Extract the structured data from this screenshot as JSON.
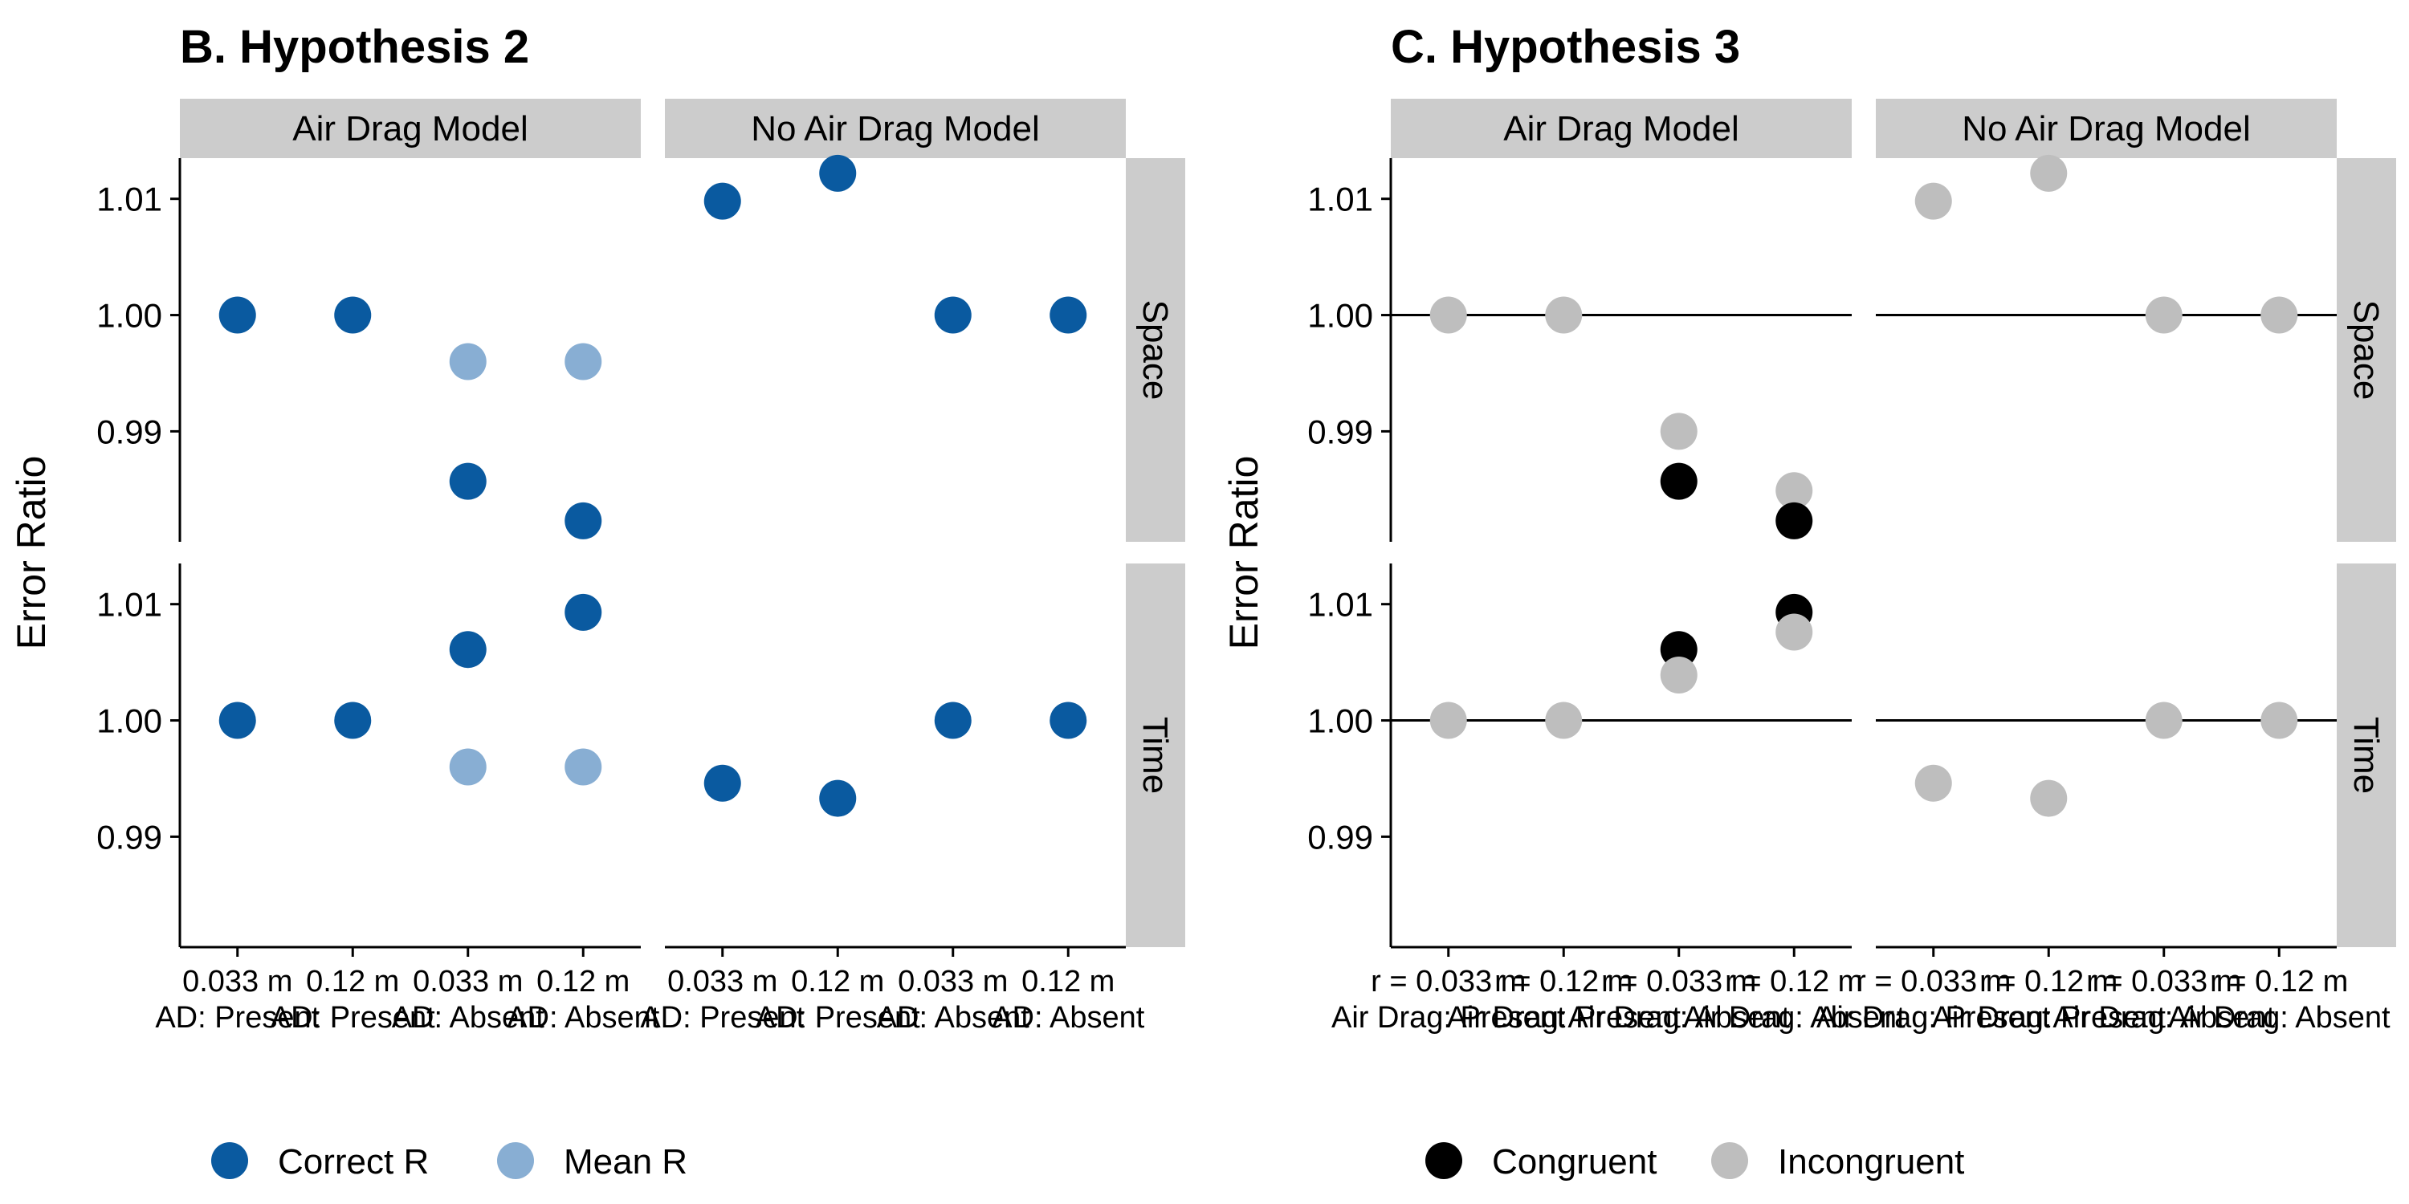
{
  "colors": {
    "correct": "#0A5AA0",
    "mean": "#88AED3",
    "congruent": "#000000",
    "incongruent": "#BEBEBE",
    "strip": "#CCCCCC",
    "axis": "#000000",
    "background": "#FFFFFF"
  },
  "chart_data": [
    {
      "type": "scatter",
      "title": "B. Hypothesis 2",
      "ylabel": "Error Ratio",
      "columns": [
        "Air Drag Model",
        "No Air Drag Model"
      ],
      "rows": [
        "Space",
        "Time"
      ],
      "ylim": {
        "Space": [
          0.9805,
          1.0135
        ],
        "Time": [
          0.9805,
          1.0135
        ]
      },
      "yticks": {
        "Space": [
          {
            "v": 0.99,
            "label": "0.99"
          },
          {
            "v": 1.0,
            "label": "1.00"
          },
          {
            "v": 1.01,
            "label": "1.01"
          }
        ],
        "Time": [
          {
            "v": 0.99,
            "label": "0.99"
          },
          {
            "v": 1.0,
            "label": "1.00"
          },
          {
            "v": 1.01,
            "label": "1.01"
          }
        ]
      },
      "reference_lines": false,
      "xtick_labels": [
        [
          "0.033 m",
          "0.12 m",
          "0.033 m",
          "0.12 m"
        ],
        [
          "AD: Present",
          "AD: Present",
          "AD: Absent",
          "AD: Absent"
        ]
      ],
      "legend": {
        "position": "bottom",
        "entries": [
          {
            "label": "Correct R",
            "color_key": "correct"
          },
          {
            "label": "Mean R",
            "color_key": "mean"
          }
        ]
      },
      "points": [
        {
          "column": 0,
          "row": "Space",
          "x": 0,
          "y": 1.0,
          "series": "Correct R"
        },
        {
          "column": 0,
          "row": "Space",
          "x": 1,
          "y": 1.0,
          "series": "Correct R"
        },
        {
          "column": 0,
          "row": "Space",
          "x": 2,
          "y": 0.996,
          "series": "Mean R"
        },
        {
          "column": 0,
          "row": "Space",
          "x": 2,
          "y": 0.9857,
          "series": "Correct R"
        },
        {
          "column": 0,
          "row": "Space",
          "x": 3,
          "y": 0.996,
          "series": "Mean R"
        },
        {
          "column": 0,
          "row": "Space",
          "x": 3,
          "y": 0.9823,
          "series": "Correct R"
        },
        {
          "column": 1,
          "row": "Space",
          "x": 0,
          "y": 1.0098,
          "series": "Correct R"
        },
        {
          "column": 1,
          "row": "Space",
          "x": 1,
          "y": 1.0122,
          "series": "Correct R"
        },
        {
          "column": 1,
          "row": "Space",
          "x": 2,
          "y": 1.0,
          "series": "Correct R"
        },
        {
          "column": 1,
          "row": "Space",
          "x": 3,
          "y": 1.0,
          "series": "Correct R"
        },
        {
          "column": 0,
          "row": "Time",
          "x": 0,
          "y": 1.0,
          "series": "Correct R"
        },
        {
          "column": 0,
          "row": "Time",
          "x": 1,
          "y": 1.0,
          "series": "Correct R"
        },
        {
          "column": 0,
          "row": "Time",
          "x": 2,
          "y": 1.0061,
          "series": "Correct R"
        },
        {
          "column": 0,
          "row": "Time",
          "x": 2,
          "y": 0.996,
          "series": "Mean R"
        },
        {
          "column": 0,
          "row": "Time",
          "x": 3,
          "y": 1.0093,
          "series": "Correct R"
        },
        {
          "column": 0,
          "row": "Time",
          "x": 3,
          "y": 0.996,
          "series": "Mean R"
        },
        {
          "column": 1,
          "row": "Time",
          "x": 0,
          "y": 0.9946,
          "series": "Correct R"
        },
        {
          "column": 1,
          "row": "Time",
          "x": 1,
          "y": 0.9933,
          "series": "Correct R"
        },
        {
          "column": 1,
          "row": "Time",
          "x": 2,
          "y": 1.0,
          "series": "Correct R"
        },
        {
          "column": 1,
          "row": "Time",
          "x": 3,
          "y": 1.0,
          "series": "Correct R"
        }
      ]
    },
    {
      "type": "scatter",
      "title": "C. Hypothesis 3",
      "ylabel": "Error Ratio",
      "columns": [
        "Air Drag Model",
        "No Air Drag Model"
      ],
      "rows": [
        "Space",
        "Time"
      ],
      "ylim": {
        "Space": [
          0.9805,
          1.0135
        ],
        "Time": [
          0.9805,
          1.0135
        ]
      },
      "yticks": {
        "Space": [
          {
            "v": 0.99,
            "label": "0.99"
          },
          {
            "v": 1.0,
            "label": "1.00"
          },
          {
            "v": 1.01,
            "label": "1.01"
          }
        ],
        "Time": [
          {
            "v": 0.99,
            "label": "0.99"
          },
          {
            "v": 1.0,
            "label": "1.00"
          },
          {
            "v": 1.01,
            "label": "1.01"
          }
        ]
      },
      "reference_lines": true,
      "xtick_labels": [
        [
          "r = 0.033 m",
          "r = 0.12 m",
          "r = 0.033 m",
          "r = 0.12 m"
        ],
        [
          "Air Drag: Present",
          "Air Drag: Present",
          "Air Drag: Absent",
          "Air Drag: Absent"
        ]
      ],
      "legend": {
        "position": "bottom",
        "entries": [
          {
            "label": "Congruent",
            "color_key": "congruent"
          },
          {
            "label": "Incongruent",
            "color_key": "incongruent"
          }
        ]
      },
      "points": [
        {
          "column": 0,
          "row": "Space",
          "x": 0,
          "y": 1.0,
          "series": "Incongruent"
        },
        {
          "column": 0,
          "row": "Space",
          "x": 1,
          "y": 1.0,
          "series": "Incongruent"
        },
        {
          "column": 0,
          "row": "Space",
          "x": 2,
          "y": 0.99,
          "series": "Incongruent"
        },
        {
          "column": 0,
          "row": "Space",
          "x": 2,
          "y": 0.9857,
          "series": "Congruent"
        },
        {
          "column": 0,
          "row": "Space",
          "x": 3,
          "y": 0.9849,
          "series": "Incongruent"
        },
        {
          "column": 0,
          "row": "Space",
          "x": 3,
          "y": 0.9823,
          "series": "Congruent"
        },
        {
          "column": 1,
          "row": "Space",
          "x": 0,
          "y": 1.0098,
          "series": "Incongruent"
        },
        {
          "column": 1,
          "row": "Space",
          "x": 1,
          "y": 1.0122,
          "series": "Incongruent"
        },
        {
          "column": 1,
          "row": "Space",
          "x": 2,
          "y": 1.0,
          "series": "Incongruent"
        },
        {
          "column": 1,
          "row": "Space",
          "x": 3,
          "y": 1.0,
          "series": "Incongruent"
        },
        {
          "column": 0,
          "row": "Time",
          "x": 0,
          "y": 1.0,
          "series": "Incongruent"
        },
        {
          "column": 0,
          "row": "Time",
          "x": 1,
          "y": 1.0,
          "series": "Incongruent"
        },
        {
          "column": 0,
          "row": "Time",
          "x": 2,
          "y": 1.0061,
          "series": "Congruent"
        },
        {
          "column": 0,
          "row": "Time",
          "x": 2,
          "y": 1.0039,
          "series": "Incongruent"
        },
        {
          "column": 0,
          "row": "Time",
          "x": 3,
          "y": 1.0093,
          "series": "Congruent"
        },
        {
          "column": 0,
          "row": "Time",
          "x": 3,
          "y": 1.0076,
          "series": "Incongruent"
        },
        {
          "column": 1,
          "row": "Time",
          "x": 0,
          "y": 0.9946,
          "series": "Incongruent"
        },
        {
          "column": 1,
          "row": "Time",
          "x": 1,
          "y": 0.9933,
          "series": "Incongruent"
        },
        {
          "column": 1,
          "row": "Time",
          "x": 2,
          "y": 1.0,
          "series": "Incongruent"
        },
        {
          "column": 1,
          "row": "Time",
          "x": 3,
          "y": 1.0,
          "series": "Incongruent"
        }
      ]
    }
  ]
}
